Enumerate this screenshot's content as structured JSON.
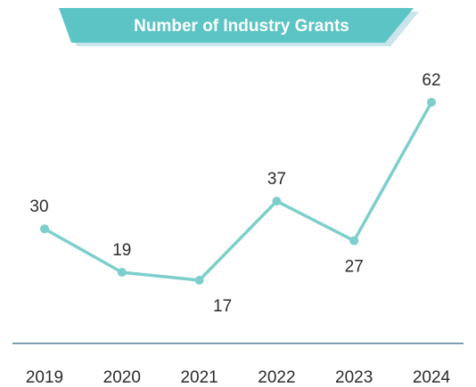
{
  "chart_data": {
    "type": "line",
    "title": "Number of Industry Grants",
    "xlabel": "",
    "ylabel": "",
    "categories": [
      "2019",
      "2020",
      "2021",
      "2022",
      "2023",
      "2024"
    ],
    "series": [
      {
        "values": [
          30,
          19,
          17,
          37,
          27,
          62
        ]
      }
    ],
    "data_labels": [
      "30",
      "19",
      "17",
      "37",
      "27",
      "62"
    ],
    "ylim": [
      0,
      70
    ],
    "grid": false,
    "legend": "none",
    "colors": {
      "line": "#7ccfca",
      "title_banner": "#5cc4c4",
      "title_banner_shadow": "#c9e4ea",
      "axis": "#7b9eb0",
      "text": "#2b2b2b"
    }
  }
}
